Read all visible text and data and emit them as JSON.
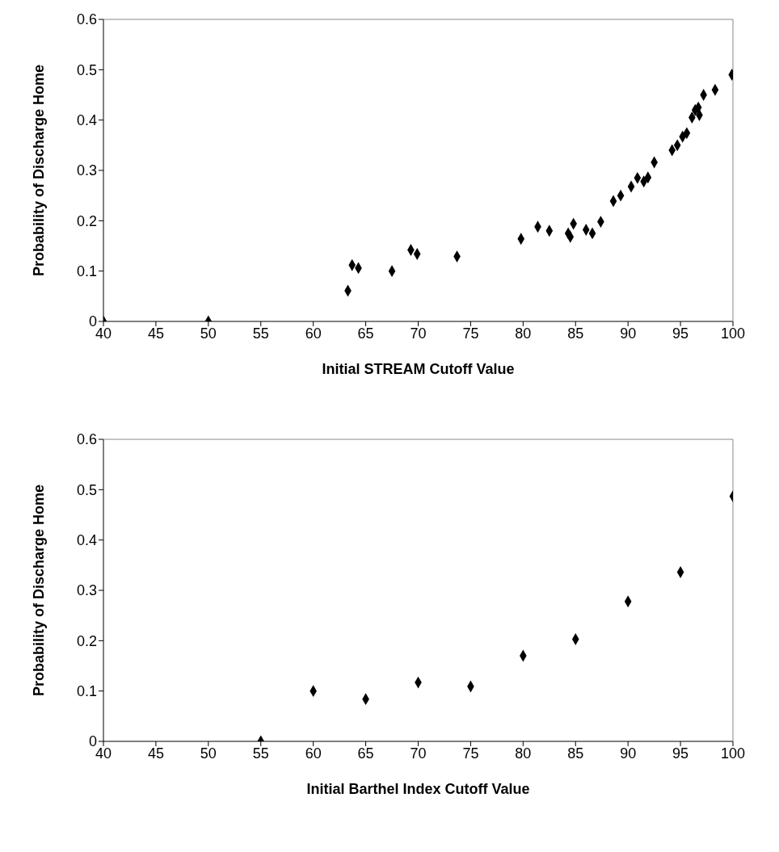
{
  "chart_data": [
    {
      "type": "scatter",
      "xlabel": "Initial STREAM Cutoff Value",
      "ylabel": "Probability of Discharge Home",
      "x": [
        40,
        50,
        63.3,
        63.7,
        64.3,
        67.5,
        69.3,
        69.9,
        73.7,
        79.8,
        81.4,
        82.5,
        84.3,
        84.5,
        84.8,
        86.0,
        86.6,
        87.4,
        88.6,
        89.3,
        90.3,
        90.9,
        91.5,
        91.9,
        92.5,
        94.2,
        94.7,
        95.2,
        95.6,
        96.1,
        96.4,
        96.7,
        96.8,
        97.2,
        98.3,
        99.9
      ],
      "values": [
        0,
        0,
        0.061,
        0.112,
        0.106,
        0.1,
        0.142,
        0.134,
        0.129,
        0.164,
        0.188,
        0.18,
        0.175,
        0.168,
        0.194,
        0.182,
        0.175,
        0.198,
        0.239,
        0.25,
        0.268,
        0.285,
        0.278,
        0.286,
        0.316,
        0.34,
        0.35,
        0.367,
        0.374,
        0.405,
        0.42,
        0.425,
        0.41,
        0.45,
        0.46,
        0.49
      ],
      "color": "#000000",
      "marker": "diamond",
      "grid": false,
      "xlim": [
        40,
        100
      ],
      "xticks": [
        40,
        45,
        50,
        55,
        60,
        65,
        70,
        75,
        80,
        85,
        90,
        95,
        100
      ],
      "ylim": [
        0,
        0.6
      ],
      "yticks": [
        0,
        0.1,
        0.2,
        0.3,
        0.4,
        0.5,
        0.6
      ]
    },
    {
      "type": "scatter",
      "xlabel": "Initial Barthel Index Cutoff Value",
      "ylabel": "Probability of Discharge Home",
      "x": [
        55,
        60,
        65,
        70,
        75,
        80,
        85,
        90,
        95,
        100
      ],
      "values": [
        0,
        0.1,
        0.084,
        0.117,
        0.109,
        0.17,
        0.203,
        0.278,
        0.336,
        0.487
      ],
      "color": "#000000",
      "marker": "diamond",
      "grid": false,
      "xlim": [
        40,
        100
      ],
      "xticks": [
        40,
        45,
        50,
        55,
        60,
        65,
        70,
        75,
        80,
        85,
        90,
        95,
        100
      ],
      "ylim": [
        0,
        0.6
      ],
      "yticks": [
        0,
        0.1,
        0.2,
        0.3,
        0.4,
        0.5,
        0.6
      ]
    }
  ]
}
